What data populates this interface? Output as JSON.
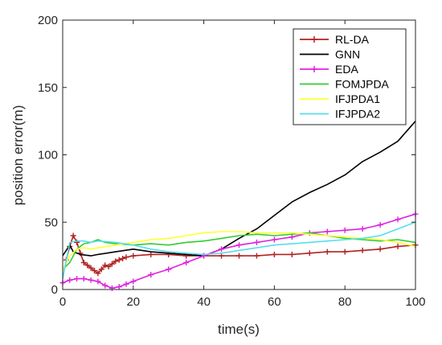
{
  "chart_data": {
    "type": "line",
    "title": "",
    "xlabel": "time(s)",
    "ylabel": "position error(m)",
    "xlim": [
      0,
      100
    ],
    "ylim": [
      0,
      200
    ],
    "xticks": [
      0,
      20,
      40,
      60,
      80,
      100
    ],
    "yticks": [
      0,
      50,
      100,
      150,
      200
    ],
    "legend_position": "top-right",
    "grid": false,
    "series": [
      {
        "name": "RL-DA",
        "color": "#b22222",
        "marker": "plus",
        "x": [
          1,
          2,
          3,
          4,
          5,
          6,
          7,
          8,
          9,
          10,
          11,
          12,
          13,
          14,
          15,
          16,
          17,
          18,
          20,
          25,
          30,
          35,
          40,
          45,
          50,
          55,
          60,
          65,
          70,
          75,
          80,
          85,
          90,
          95,
          100
        ],
        "y": [
          22,
          32,
          40,
          35,
          27,
          20,
          18,
          16,
          14,
          12,
          15,
          18,
          17,
          19,
          21,
          22,
          23,
          24,
          25,
          26,
          26,
          25,
          25,
          25,
          25,
          25,
          26,
          26,
          27,
          28,
          28,
          29,
          30,
          32,
          33
        ]
      },
      {
        "name": "GNN",
        "color": "#000000",
        "marker": "none",
        "x": [
          0,
          2,
          3,
          5,
          8,
          10,
          15,
          20,
          25,
          30,
          35,
          40,
          45,
          50,
          55,
          60,
          65,
          70,
          75,
          80,
          85,
          90,
          95,
          100
        ],
        "y": [
          25,
          33,
          28,
          26,
          25,
          26,
          28,
          30,
          28,
          27,
          26,
          25,
          30,
          38,
          45,
          55,
          65,
          72,
          78,
          85,
          95,
          102,
          110,
          125
        ]
      },
      {
        "name": "EDA",
        "color": "#e020e0",
        "marker": "plus",
        "x": [
          0,
          2,
          4,
          6,
          8,
          10,
          12,
          14,
          16,
          18,
          20,
          25,
          30,
          35,
          40,
          45,
          50,
          55,
          60,
          65,
          70,
          75,
          80,
          85,
          90,
          95,
          100
        ],
        "y": [
          5,
          7,
          8,
          8,
          7,
          6,
          3,
          1,
          2,
          4,
          6,
          11,
          15,
          20,
          25,
          30,
          33,
          35,
          37,
          39,
          42,
          43,
          44,
          45,
          48,
          52,
          56
        ]
      },
      {
        "name": "FOMJPDA",
        "color": "#33cc33",
        "marker": "none",
        "x": [
          0,
          2,
          4,
          6,
          8,
          10,
          12,
          15,
          20,
          25,
          30,
          35,
          40,
          45,
          50,
          55,
          60,
          65,
          70,
          75,
          80,
          85,
          90,
          95,
          100
        ],
        "y": [
          15,
          20,
          30,
          34,
          35,
          37,
          35,
          34,
          33,
          34,
          33,
          35,
          36,
          38,
          40,
          41,
          40,
          41,
          42,
          40,
          38,
          37,
          36,
          37,
          35
        ]
      },
      {
        "name": "IFJPDA1",
        "color": "#ffff33",
        "marker": "none",
        "x": [
          0,
          2,
          4,
          6,
          8,
          10,
          15,
          20,
          25,
          30,
          35,
          40,
          45,
          50,
          55,
          60,
          65,
          70,
          75,
          80,
          85,
          90,
          95,
          100
        ],
        "y": [
          15,
          25,
          30,
          31,
          30,
          31,
          33,
          35,
          37,
          38,
          40,
          42,
          43,
          43,
          42,
          42,
          42,
          41,
          40,
          39,
          38,
          37,
          35,
          32
        ]
      },
      {
        "name": "IFJPDA2",
        "color": "#55ddee",
        "marker": "none",
        "x": [
          0,
          2,
          4,
          6,
          8,
          10,
          15,
          20,
          25,
          30,
          35,
          40,
          45,
          50,
          55,
          60,
          65,
          70,
          75,
          80,
          85,
          90,
          95,
          100
        ],
        "y": [
          8,
          35,
          36,
          36,
          35,
          36,
          35,
          33,
          30,
          28,
          27,
          26,
          27,
          29,
          31,
          33,
          34,
          35,
          36,
          37,
          38,
          40,
          45,
          50
        ]
      }
    ]
  }
}
